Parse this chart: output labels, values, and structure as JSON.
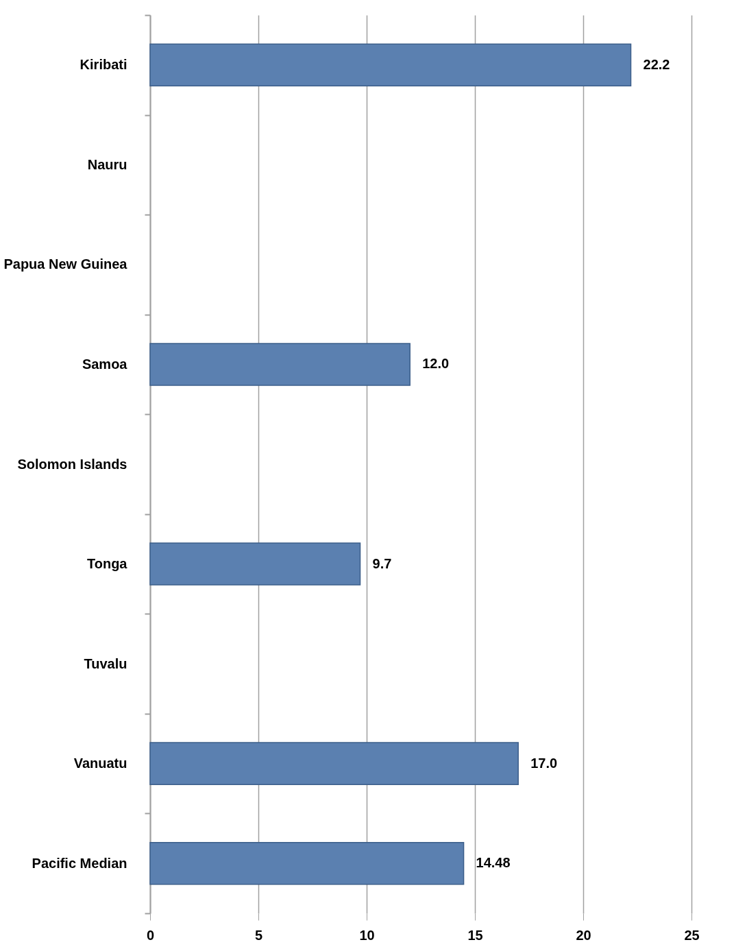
{
  "chart_data": {
    "type": "bar",
    "orientation": "horizontal",
    "categories": [
      "Kiribati",
      "Nauru",
      "Papua New Guinea",
      "Samoa",
      "Solomon Islands",
      "Tonga",
      "Tuvalu",
      "Vanuatu",
      "Pacific Median"
    ],
    "values": [
      22.2,
      null,
      null,
      12.0,
      null,
      9.7,
      null,
      17.0,
      14.48
    ],
    "value_labels": [
      "22.2",
      null,
      null,
      "12.0",
      null,
      "9.7",
      null,
      "17.0",
      "14.48"
    ],
    "color": "#5b80b0",
    "xlim": [
      0,
      25
    ],
    "xticks": [
      0,
      5,
      10,
      15,
      20,
      25
    ],
    "grid": "x"
  }
}
